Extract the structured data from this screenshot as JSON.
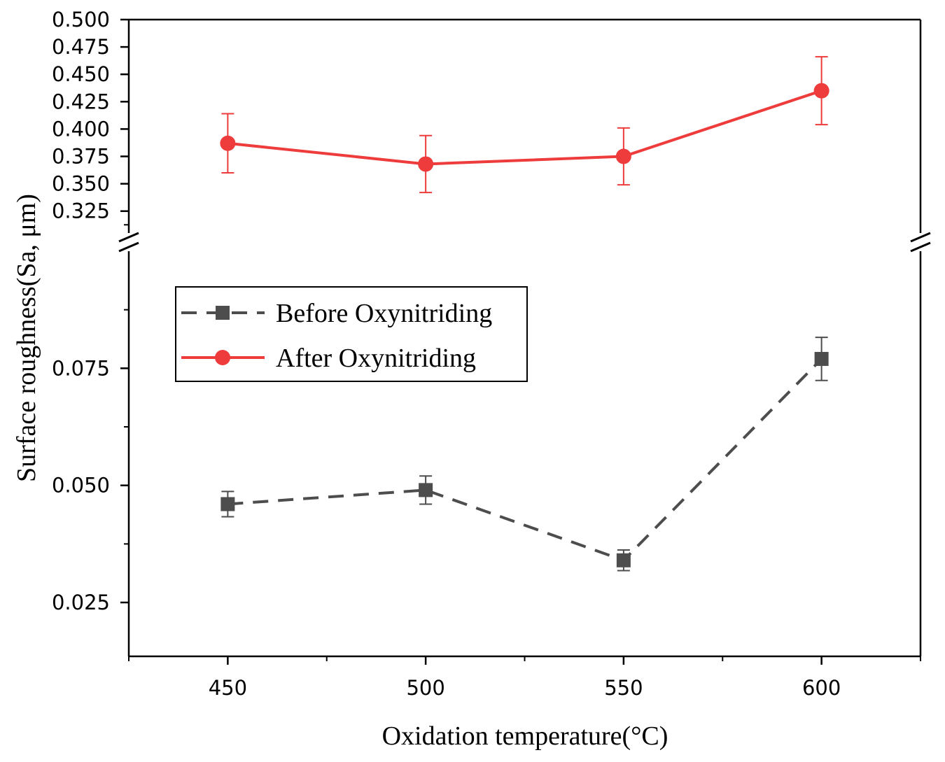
{
  "chart_data": {
    "type": "line",
    "xlabel": "Oxidation temperature(°C)",
    "ylabel": "Surface roughness(Sa, μm)",
    "x": [
      450,
      500,
      550,
      600
    ],
    "xlim": [
      425,
      625
    ],
    "x_ticks": [
      450,
      500,
      550,
      600
    ],
    "x_tick_labels": [
      "450",
      "500",
      "550",
      "600"
    ],
    "axis_break": true,
    "y_segments": {
      "lower": {
        "ylim": [
          0.0135,
          0.1
        ],
        "ticks": [
          0.025,
          0.05,
          0.075
        ],
        "tick_labels": [
          "0.025",
          "0.050",
          "0.075"
        ]
      },
      "upper": {
        "ylim": [
          0.305,
          0.5
        ],
        "ticks": [
          0.325,
          0.35,
          0.375,
          0.4,
          0.425,
          0.45,
          0.475,
          0.5
        ],
        "tick_labels": [
          "0.325",
          "0.350",
          "0.375",
          "0.400",
          "0.425",
          "0.450",
          "0.475",
          "0.500"
        ]
      }
    },
    "series": [
      {
        "name": "Before Oxynitriding",
        "segment": "lower",
        "values": [
          0.046,
          0.049,
          0.034,
          0.077
        ],
        "errors": [
          0.0027,
          0.003,
          0.0022,
          0.0046
        ],
        "color": "#4d4d4d",
        "marker": "square",
        "line": "dashed"
      },
      {
        "name": "After Oxynitriding",
        "segment": "upper",
        "values": [
          0.387,
          0.368,
          0.375,
          0.435
        ],
        "errors": [
          0.027,
          0.026,
          0.026,
          0.031
        ],
        "color": "#ee3b3b",
        "marker": "circle",
        "line": "solid"
      }
    ],
    "legend": {
      "position": "upper-left-of-lower-panel"
    }
  }
}
